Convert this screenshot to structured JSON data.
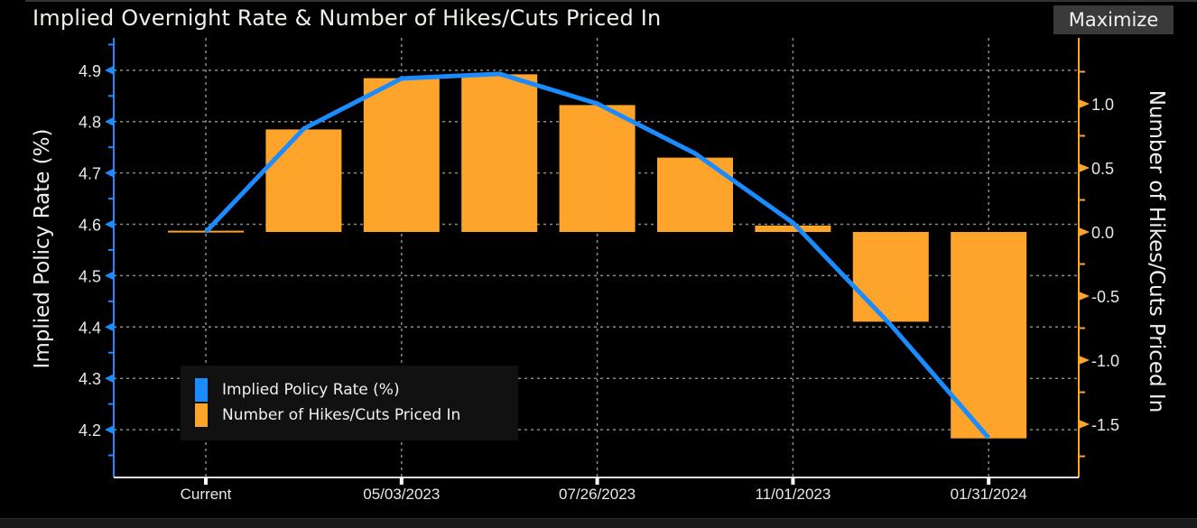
{
  "header": {
    "title": "Implied Overnight Rate & Number of Hikes/Cuts Priced In",
    "maximize_label": "Maximize"
  },
  "colors": {
    "line": "#1a8cff",
    "bars": "#ffa42a",
    "background": "#000000",
    "grid": "#8a8a8a"
  },
  "chart_data": {
    "type": "bar+line",
    "title": "Implied Overnight Rate & Number of Hikes/Cuts Priced In",
    "categories": [
      "Current",
      "",
      "05/03/2023",
      "",
      "07/26/2023",
      "",
      "11/01/2023",
      "",
      "01/31/2024"
    ],
    "x_tick_labels": [
      "Current",
      "05/03/2023",
      "07/26/2023",
      "11/01/2023",
      "01/31/2024"
    ],
    "series": [
      {
        "name": "Implied Policy Rate (%)",
        "type": "line",
        "axis": "left",
        "values": [
          4.585,
          4.786,
          4.884,
          4.893,
          4.835,
          4.738,
          4.603,
          4.404,
          4.184
        ]
      },
      {
        "name": "Number of Hikes/Cuts Priced In",
        "type": "bar",
        "axis": "right",
        "values": [
          0.01,
          0.8,
          1.2,
          1.23,
          0.99,
          0.58,
          0.05,
          -0.7,
          -1.61
        ]
      }
    ],
    "ylabel": "Implied Policy Rate (%)",
    "y2label": "Number of Hikes/Cuts Priced In",
    "ylim": [
      4.107,
      4.963
    ],
    "y2lim": [
      -1.915,
      1.514
    ],
    "yticks": [
      "4.2",
      "4.3",
      "4.4",
      "4.5",
      "4.6",
      "4.7",
      "4.8",
      "4.9"
    ],
    "y2ticks": [
      "-1.5",
      "-1.0",
      "-0.5",
      "0.0",
      "0.5",
      "1.0"
    ],
    "grid": true,
    "legend_position": "bottom-left"
  }
}
